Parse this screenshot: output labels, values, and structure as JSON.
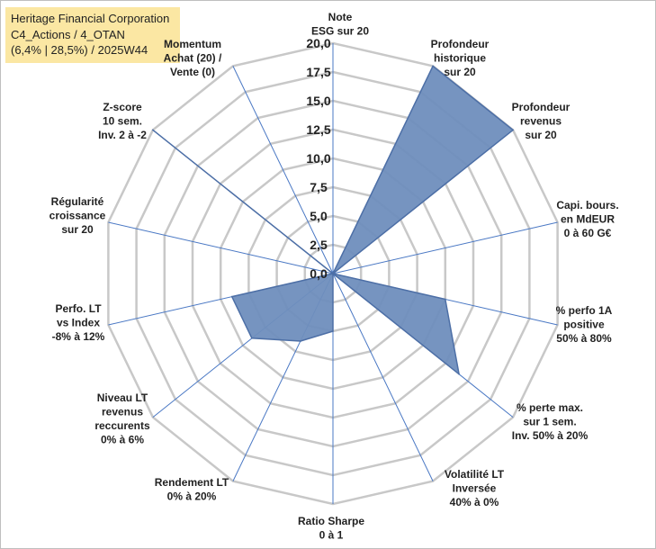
{
  "chart_data": {
    "type": "radar",
    "title_lines": [
      "Heritage Financial Corporation",
      "C4_Actions / 4_OTAN",
      "(6,4% | 28,5%) / 2025W44"
    ],
    "axes": [
      [
        "Note",
        "ESG sur 20"
      ],
      [
        "Profondeur",
        "historique",
        "sur 20"
      ],
      [
        "Profondeur",
        "revenus",
        "sur 20"
      ],
      [
        "Capi. bours.",
        "en MdEUR",
        "0 à 60 G€"
      ],
      [
        "% perfo 1A",
        "positive",
        "50% à 80%"
      ],
      [
        "% perte max.",
        "sur 1 sem.",
        "Inv. 50% à 20%"
      ],
      [
        "Volatilité LT",
        "Inversée",
        "40% à 0%"
      ],
      [
        "Ratio Sharpe",
        "0 à 1"
      ],
      [
        "Rendement LT",
        "0% à 20%"
      ],
      [
        "Niveau LT",
        "revenus",
        "reccurents",
        "0% à 6%"
      ],
      [
        "Perfo. LT",
        "vs Index",
        "-8% à 12%"
      ],
      [
        "Régularité",
        "croissance",
        "sur 20"
      ],
      [
        "Z-score",
        "10 sem.",
        "Inv. 2 à -2"
      ],
      [
        "Momentum",
        "Achat (20) /",
        "Vente (0)"
      ]
    ],
    "values": [
      0,
      20,
      20,
      0,
      10,
      14,
      0,
      5,
      6.5,
      9,
      9,
      0,
      20,
      0
    ],
    "rlim": [
      0,
      20
    ],
    "ticks": [
      "0,0",
      "2,5",
      "5,0",
      "7,5",
      "10,0",
      "12,5",
      "15,0",
      "17,5",
      "20,0"
    ],
    "grid": true,
    "colors": {
      "fill": "#6f8ebd",
      "stroke": "#4d6fa6",
      "grid": "#c8c8c8",
      "spoke": "#4a78c4"
    }
  }
}
